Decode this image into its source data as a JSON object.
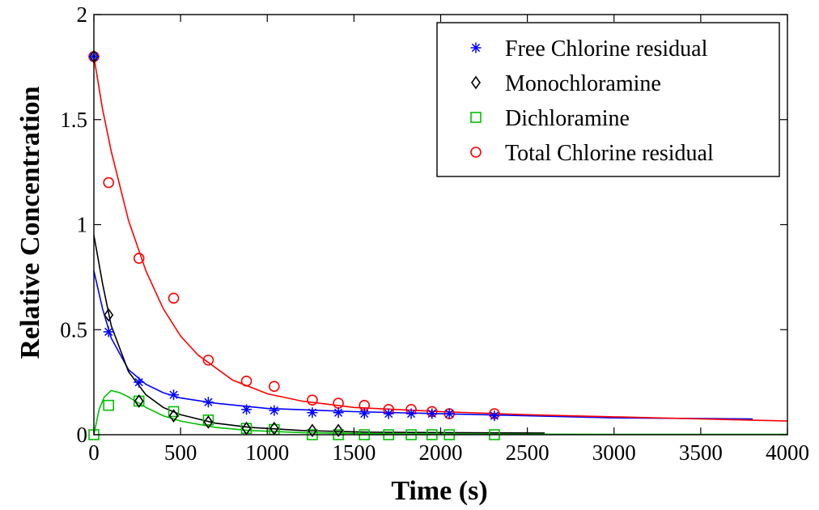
{
  "chart_data": {
    "type": "scatter",
    "title": "",
    "xlabel": "Time (s)",
    "ylabel": "Relative Concentration",
    "xlim": [
      0,
      4000
    ],
    "ylim": [
      0,
      2
    ],
    "xticks": [
      0,
      500,
      1000,
      1500,
      2000,
      2500,
      3000,
      3500,
      4000
    ],
    "xtick_labels": [
      "0",
      "500",
      "1000",
      "1500",
      "2000",
      "2500",
      "3000",
      "3500",
      "4000"
    ],
    "yticks": [
      0,
      0.5,
      1,
      1.5,
      2
    ],
    "ytick_labels": [
      "0",
      "0.5",
      "1",
      "1.5",
      "2"
    ],
    "grid": false,
    "legend_position": "top-right",
    "series": [
      {
        "name": "Free Chlorine residual",
        "marker": "star",
        "color": "#0000ff",
        "points": [
          [
            0,
            1.8
          ],
          [
            85,
            0.49
          ],
          [
            260,
            0.25
          ],
          [
            460,
            0.19
          ],
          [
            660,
            0.155
          ],
          [
            880,
            0.12
          ],
          [
            1040,
            0.115
          ],
          [
            1260,
            0.105
          ],
          [
            1410,
            0.105
          ],
          [
            1560,
            0.1
          ],
          [
            1700,
            0.1
          ],
          [
            1830,
            0.1
          ],
          [
            1950,
            0.1
          ],
          [
            2050,
            0.1
          ],
          [
            2310,
            0.09
          ]
        ],
        "fit_curve": [
          [
            0,
            0.78
          ],
          [
            50,
            0.6
          ],
          [
            100,
            0.46
          ],
          [
            200,
            0.31
          ],
          [
            300,
            0.24
          ],
          [
            400,
            0.2
          ],
          [
            500,
            0.175
          ],
          [
            700,
            0.15
          ],
          [
            1000,
            0.125
          ],
          [
            1500,
            0.11
          ],
          [
            2000,
            0.1
          ],
          [
            2500,
            0.09
          ],
          [
            3000,
            0.08
          ],
          [
            3800,
            0.075
          ]
        ]
      },
      {
        "name": "Monochloramine",
        "marker": "diamond",
        "color": "#000000",
        "points": [
          [
            0,
            1.8
          ],
          [
            85,
            0.57
          ],
          [
            260,
            0.16
          ],
          [
            460,
            0.09
          ],
          [
            660,
            0.06
          ],
          [
            880,
            0.03
          ],
          [
            1040,
            0.03
          ],
          [
            1260,
            0.02
          ],
          [
            1410,
            0.02
          ]
        ],
        "fit_curve": [
          [
            0,
            0.95
          ],
          [
            50,
            0.72
          ],
          [
            100,
            0.52
          ],
          [
            200,
            0.3
          ],
          [
            300,
            0.19
          ],
          [
            400,
            0.13
          ],
          [
            500,
            0.095
          ],
          [
            700,
            0.055
          ],
          [
            900,
            0.035
          ],
          [
            1200,
            0.02
          ],
          [
            1600,
            0.012
          ],
          [
            2000,
            0.01
          ],
          [
            2600,
            0.008
          ]
        ]
      },
      {
        "name": "Dichloramine",
        "marker": "square",
        "color": "#00c000",
        "points": [
          [
            0,
            0.0
          ],
          [
            85,
            0.14
          ],
          [
            260,
            0.16
          ],
          [
            460,
            0.11
          ],
          [
            660,
            0.07
          ],
          [
            880,
            0.03
          ],
          [
            1040,
            0.025
          ],
          [
            1260,
            0.0
          ],
          [
            1410,
            0.0
          ],
          [
            1560,
            0.0
          ],
          [
            1700,
            0.0
          ],
          [
            1830,
            0.0
          ],
          [
            1950,
            0.0
          ],
          [
            2050,
            0.0
          ],
          [
            2310,
            0.0
          ]
        ],
        "fit_curve": [
          [
            0,
            0.0
          ],
          [
            30,
            0.12
          ],
          [
            60,
            0.18
          ],
          [
            100,
            0.21
          ],
          [
            150,
            0.2
          ],
          [
            200,
            0.18
          ],
          [
            300,
            0.13
          ],
          [
            400,
            0.09
          ],
          [
            500,
            0.065
          ],
          [
            700,
            0.035
          ],
          [
            900,
            0.02
          ],
          [
            1200,
            0.01
          ],
          [
            1600,
            0.005
          ],
          [
            2000,
            0.003
          ],
          [
            3000,
            0.002
          ],
          [
            4000,
            0.002
          ]
        ]
      },
      {
        "name": "Total Chlorine residual",
        "marker": "circle",
        "color": "#ff0000",
        "points": [
          [
            0,
            1.8
          ],
          [
            85,
            1.2
          ],
          [
            260,
            0.84
          ],
          [
            460,
            0.65
          ],
          [
            660,
            0.355
          ],
          [
            880,
            0.255
          ],
          [
            1040,
            0.23
          ],
          [
            1260,
            0.165
          ],
          [
            1410,
            0.15
          ],
          [
            1560,
            0.14
          ],
          [
            1700,
            0.12
          ],
          [
            1830,
            0.12
          ],
          [
            1950,
            0.11
          ],
          [
            2050,
            0.1
          ],
          [
            2310,
            0.1
          ]
        ],
        "fit_curve": [
          [
            0,
            1.8
          ],
          [
            50,
            1.55
          ],
          [
            100,
            1.35
          ],
          [
            200,
            1.02
          ],
          [
            300,
            0.78
          ],
          [
            400,
            0.6
          ],
          [
            500,
            0.47
          ],
          [
            600,
            0.38
          ],
          [
            800,
            0.26
          ],
          [
            1000,
            0.195
          ],
          [
            1200,
            0.16
          ],
          [
            1500,
            0.13
          ],
          [
            2000,
            0.11
          ],
          [
            2500,
            0.095
          ],
          [
            3000,
            0.085
          ],
          [
            3500,
            0.075
          ],
          [
            4000,
            0.065
          ]
        ]
      }
    ]
  }
}
